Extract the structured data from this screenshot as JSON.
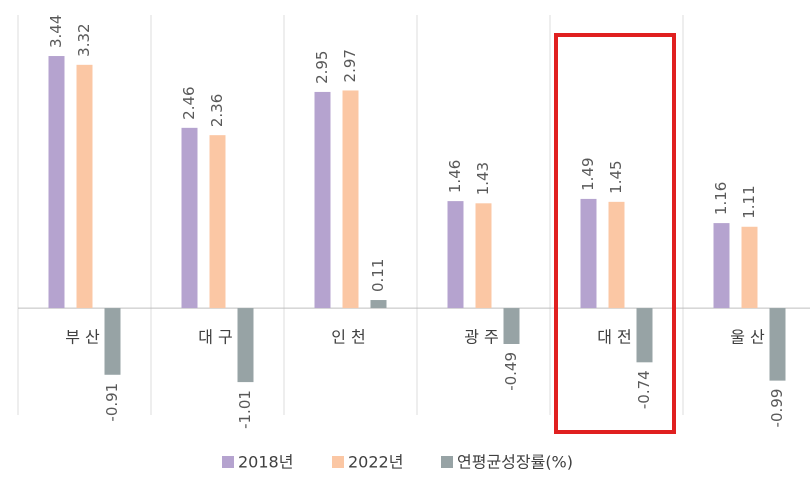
{
  "chart_data": {
    "type": "bar",
    "categories": [
      "부 산",
      "대 구",
      "인 천",
      "광 주",
      "대 전",
      "울 산"
    ],
    "series": [
      {
        "name": "2018년",
        "color": "#b5a3cf",
        "values": [
          3.44,
          2.46,
          2.95,
          1.46,
          1.49,
          1.16
        ]
      },
      {
        "name": "2022년",
        "color": "#fbc7a4",
        "values": [
          3.32,
          2.36,
          2.97,
          1.43,
          1.45,
          1.11
        ]
      },
      {
        "name": "연평균성장률(%)",
        "color": "#97a3a5",
        "values": [
          -0.91,
          -1.01,
          0.11,
          -0.49,
          -0.74,
          -0.99
        ]
      }
    ],
    "ylim": [
      -1.5,
      4
    ],
    "grid": true,
    "legend": "bottom"
  }
}
